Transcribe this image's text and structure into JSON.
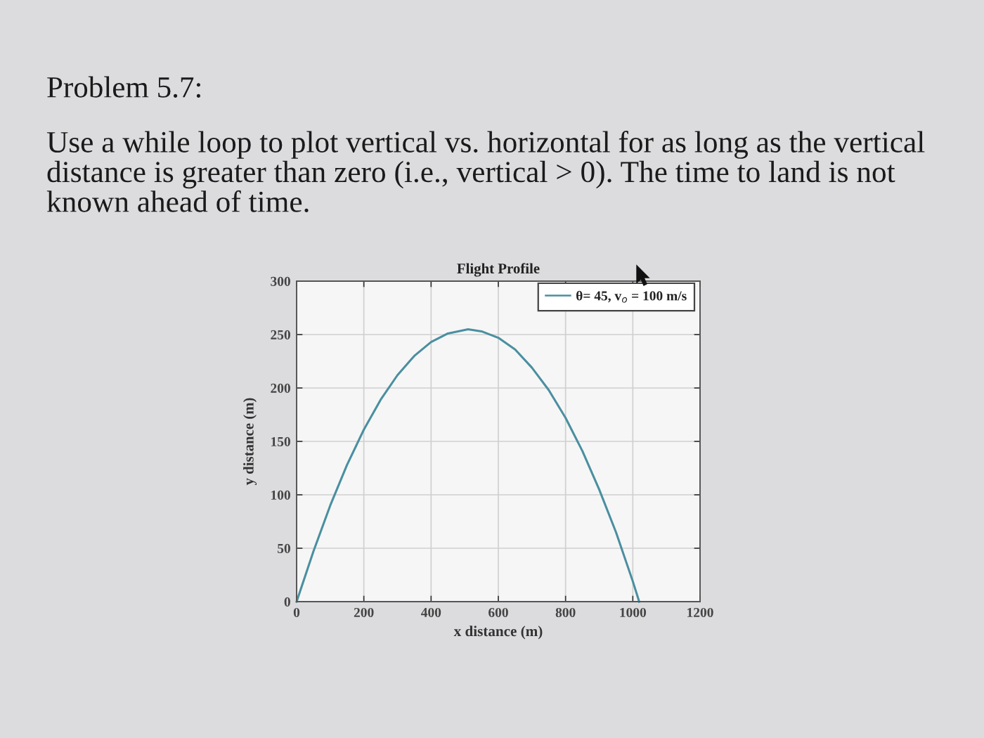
{
  "chart_data": {
    "type": "line",
    "title": "Flight Profile",
    "xlabel": "x distance (m)",
    "ylabel": "y distance (m)",
    "annotations": [
      "Problem 5.7:",
      "Use a while loop to plot vertical vs. horizontal for as long as the vertical distance is greater than zero (i.e., vertical > 0). The time to land is not known ahead of time."
    ],
    "x": [
      0,
      50,
      100,
      150,
      200,
      250,
      300,
      350,
      400,
      450,
      510,
      550,
      600,
      650,
      700,
      750,
      800,
      850,
      900,
      950,
      1000,
      1019
    ],
    "series": [
      {
        "name": "θ= 45, v$_{o}$ = 100 m/s",
        "color": "#4a8fa0",
        "values": [
          0,
          47,
          90,
          128,
          161,
          189,
          212,
          230,
          243,
          251,
          255,
          253,
          247,
          236,
          219,
          198,
          172,
          141,
          105,
          65,
          19,
          0
        ]
      }
    ],
    "xlim": [
      0,
      1200
    ],
    "xticks": [
      0,
      200,
      400,
      600,
      800,
      1000,
      1200
    ],
    "ylim": [
      0,
      300
    ],
    "yticks": [
      0,
      50,
      100,
      150,
      200,
      250,
      300
    ],
    "grid": true,
    "legend": "top right"
  }
}
